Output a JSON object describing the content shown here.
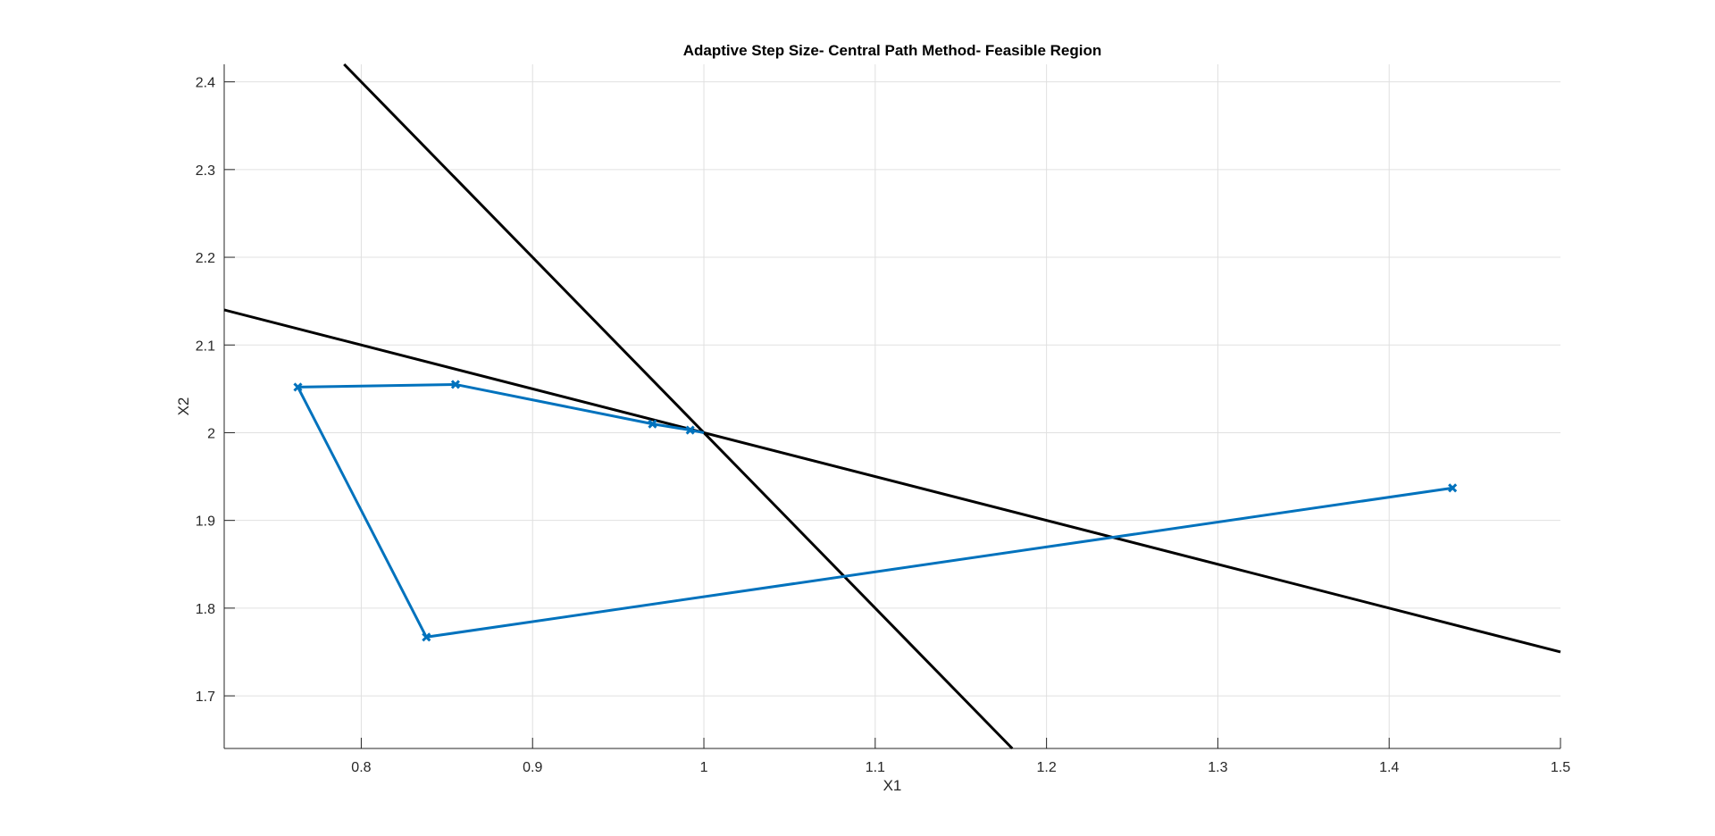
{
  "chart_data": {
    "type": "line",
    "title": "Adaptive Step Size- Central Path Method- Feasible Region",
    "xlabel": "X1",
    "ylabel": "X2",
    "xlim": [
      0.72,
      1.5
    ],
    "ylim": [
      1.64,
      2.42
    ],
    "grid": true,
    "x_ticks": [
      0.8,
      0.9,
      1.0,
      1.1,
      1.2,
      1.3,
      1.4,
      1.5
    ],
    "x_tick_labels": [
      "0.8",
      "0.9",
      "1",
      "1.1",
      "1.2",
      "1.3",
      "1.4",
      "1.5"
    ],
    "y_ticks": [
      1.7,
      1.8,
      1.9,
      2.0,
      2.1,
      2.2,
      2.3,
      2.4
    ],
    "y_tick_labels": [
      "1.7",
      "1.8",
      "1.9",
      "2",
      "2.1",
      "2.2",
      "2.3",
      "2.4"
    ],
    "series": [
      {
        "color": "#0072BD",
        "marker": "x",
        "x": [
          1.437,
          0.838,
          0.763,
          0.855,
          0.97,
          0.992,
          1.0
        ],
        "y": [
          1.937,
          1.767,
          2.052,
          2.055,
          2.01,
          2.003,
          2.0
        ]
      }
    ],
    "constraint_lines": [
      {
        "color": "#000000",
        "x": [
          0.79,
          1.18
        ],
        "y": [
          2.42,
          1.64
        ]
      },
      {
        "color": "#000000",
        "x": [
          0.72,
          1.5
        ],
        "y": [
          2.14,
          1.75
        ]
      }
    ]
  }
}
